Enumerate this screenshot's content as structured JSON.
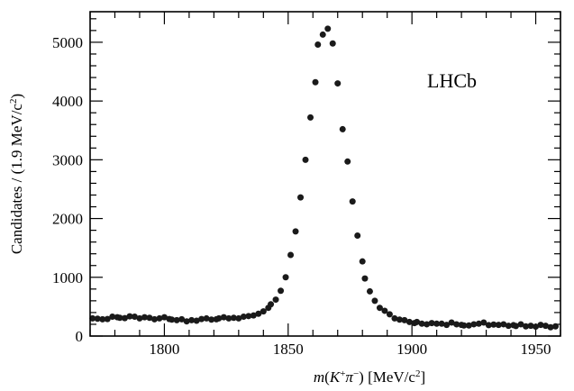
{
  "chart_data": {
    "type": "scatter",
    "title": "",
    "annotation": "LHCb",
    "xlabel": {
      "parts": [
        {
          "t": "m",
          "style": "italic"
        },
        {
          "t": "(",
          "style": "normal"
        },
        {
          "t": "K",
          "style": "italic"
        },
        {
          "t": "+",
          "style": "sup"
        },
        {
          "t": "π",
          "style": "italic"
        },
        {
          "t": "−",
          "style": "sup"
        },
        {
          "t": ") [MeV/c",
          "style": "normal"
        },
        {
          "t": "2",
          "style": "sup"
        },
        {
          "t": "]",
          "style": "normal"
        }
      ]
    },
    "ylabel": {
      "parts": [
        {
          "t": "Candidates / (1.9 MeV/c",
          "style": "normal"
        },
        {
          "t": "2",
          "style": "sup"
        },
        {
          "t": ")",
          "style": "normal"
        }
      ]
    },
    "xlim": [
      1770,
      1960
    ],
    "ylim": [
      0,
      5520
    ],
    "xticks_major": [
      1800,
      1850,
      1900,
      1950
    ],
    "xtick_labels": [
      "1800",
      "1850",
      "1900",
      "1950"
    ],
    "yticks_major": [
      0,
      1000,
      2000,
      3000,
      4000,
      5000
    ],
    "ytick_labels": [
      "0",
      "1000",
      "2000",
      "3000",
      "4000",
      "5000"
    ],
    "grid": false,
    "series": [
      {
        "marker_color": "#1a1a1a",
        "x": [
          1771,
          1773,
          1775,
          1777,
          1779,
          1781,
          1782,
          1784,
          1786,
          1788,
          1790,
          1792,
          1794,
          1796,
          1798,
          1800,
          1802,
          1803,
          1805,
          1807,
          1809,
          1811,
          1813,
          1815,
          1817,
          1819,
          1821,
          1822,
          1824,
          1826,
          1828,
          1830,
          1832,
          1834,
          1836,
          1838,
          1840,
          1842,
          1843,
          1845,
          1847,
          1849,
          1851,
          1853,
          1855,
          1857,
          1859,
          1861,
          1862,
          1864,
          1866,
          1868,
          1870,
          1872,
          1874,
          1876,
          1878,
          1880,
          1881,
          1883,
          1885,
          1887,
          1889,
          1891,
          1893,
          1895,
          1897,
          1899,
          1901,
          1902,
          1904,
          1906,
          1908,
          1910,
          1912,
          1914,
          1916,
          1918,
          1920,
          1921,
          1923,
          1925,
          1927,
          1929,
          1931,
          1933,
          1935,
          1937,
          1939,
          1941,
          1942,
          1944,
          1946,
          1948,
          1950,
          1952,
          1954,
          1956,
          1958
        ],
        "y": [
          300,
          295,
          285,
          290,
          330,
          320,
          310,
          305,
          335,
          330,
          300,
          320,
          310,
          285,
          300,
          320,
          290,
          280,
          270,
          285,
          250,
          270,
          260,
          290,
          300,
          280,
          285,
          300,
          320,
          300,
          310,
          300,
          330,
          340,
          350,
          380,
          420,
          480,
          540,
          620,
          770,
          1000,
          1380,
          1780,
          2360,
          3000,
          3720,
          4320,
          4960,
          5130,
          5230,
          4980,
          4300,
          3520,
          2970,
          2290,
          1710,
          1270,
          980,
          760,
          600,
          480,
          430,
          370,
          300,
          280,
          270,
          240,
          220,
          240,
          210,
          200,
          220,
          210,
          210,
          190,
          230,
          200,
          190,
          180,
          180,
          200,
          210,
          230,
          185,
          195,
          190,
          200,
          175,
          185,
          170,
          200,
          165,
          175,
          160,
          190,
          175,
          150,
          165
        ]
      }
    ]
  }
}
